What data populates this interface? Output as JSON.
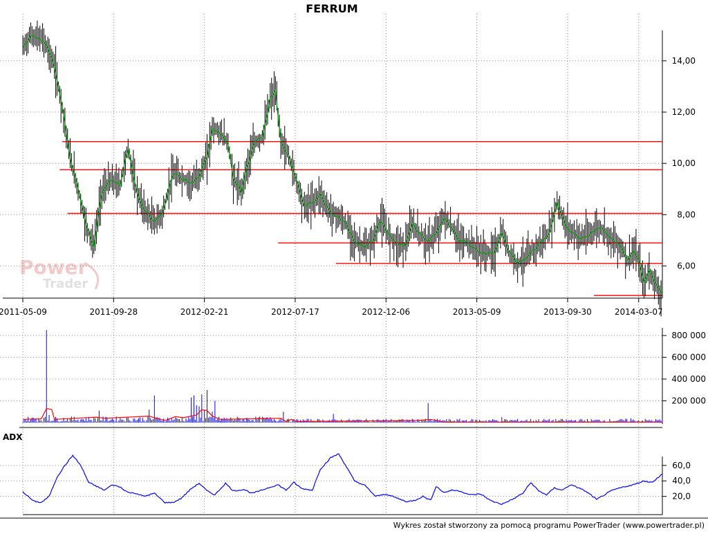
{
  "title": "FERRUM",
  "footer": "Wykres został stworzony za pomocą programu PowerTrader (www.powertrader.pl)",
  "watermark": {
    "line1": "Power",
    "line2": "Trader"
  },
  "adx_label": "ADX",
  "colors": {
    "price_bars": "#000000",
    "price_ma": "#00a000",
    "support_lines": "#ff0000",
    "volume_bars": "#0000ff",
    "volume_ma": "#ff0000",
    "adx_line": "#0000ff",
    "watermark": "#e8a0a0"
  },
  "chart_data": [
    {
      "name": "price",
      "type": "line",
      "x_ticks": [
        "2011-05-09",
        "2011-09-28",
        "2012-02-21",
        "2012-07-17",
        "2012-12-06",
        "2013-05-09",
        "2013-09-30",
        "2014-03-07"
      ],
      "ylim": [
        4.8,
        15.4
      ],
      "y_ticks": [
        "6,00",
        "8,00",
        "10,00",
        "12,00",
        "14,00"
      ],
      "y_tick_values": [
        6,
        8,
        10,
        12,
        14
      ],
      "close_series": [
        [
          0,
          14.5
        ],
        [
          3,
          15.0
        ],
        [
          8,
          14.8
        ],
        [
          12,
          13.8
        ],
        [
          15,
          12.2
        ],
        [
          18,
          10.2
        ],
        [
          21,
          9.0
        ],
        [
          24,
          7.6
        ],
        [
          27,
          6.8
        ],
        [
          30,
          8.9
        ],
        [
          33,
          9.3
        ],
        [
          37,
          9.2
        ],
        [
          40,
          10.6
        ],
        [
          43,
          9.0
        ],
        [
          46,
          8.2
        ],
        [
          50,
          7.7
        ],
        [
          53,
          8.0
        ],
        [
          57,
          9.6
        ],
        [
          61,
          9.4
        ],
        [
          64,
          9.2
        ],
        [
          67,
          9.5
        ],
        [
          70,
          10.2
        ],
        [
          72,
          11.4
        ],
        [
          75,
          11.2
        ],
        [
          78,
          10.8
        ],
        [
          80,
          9.4
        ],
        [
          83,
          8.9
        ],
        [
          85,
          9.8
        ],
        [
          88,
          10.8
        ],
        [
          91,
          11.0
        ],
        [
          94,
          12.5
        ],
        [
          96,
          12.8
        ],
        [
          98,
          10.9
        ],
        [
          101,
          10.3
        ],
        [
          104,
          9.3
        ],
        [
          107,
          8.3
        ],
        [
          110,
          8.5
        ],
        [
          113,
          8.8
        ],
        [
          116,
          8.2
        ],
        [
          120,
          7.9
        ],
        [
          123,
          7.6
        ],
        [
          126,
          7.0
        ],
        [
          130,
          6.7
        ],
        [
          133,
          7.0
        ],
        [
          136,
          7.8
        ],
        [
          139,
          7.2
        ],
        [
          142,
          6.9
        ],
        [
          145,
          6.8
        ],
        [
          148,
          7.6
        ],
        [
          151,
          7.2
        ],
        [
          154,
          6.9
        ],
        [
          157,
          7.3
        ],
        [
          160,
          7.9
        ],
        [
          163,
          7.5
        ],
        [
          166,
          7.0
        ],
        [
          169,
          6.9
        ],
        [
          173,
          6.6
        ],
        [
          176,
          6.5
        ],
        [
          179,
          6.5
        ],
        [
          182,
          7.3
        ],
        [
          185,
          6.5
        ],
        [
          188,
          6.1
        ],
        [
          191,
          6.3
        ],
        [
          194,
          6.6
        ],
        [
          197,
          6.9
        ],
        [
          200,
          7.3
        ],
        [
          203,
          8.5
        ],
        [
          206,
          7.6
        ],
        [
          209,
          7.3
        ],
        [
          212,
          7.1
        ],
        [
          215,
          7.2
        ],
        [
          218,
          7.5
        ],
        [
          221,
          7.4
        ],
        [
          224,
          7.0
        ],
        [
          227,
          6.8
        ],
        [
          230,
          6.2
        ],
        [
          232,
          6.6
        ],
        [
          234,
          6.2
        ],
        [
          236,
          5.3
        ],
        [
          238,
          5.8
        ],
        [
          240,
          5.4
        ],
        [
          242,
          5.0
        ],
        [
          243,
          4.9
        ]
      ],
      "horizontal_lines": [
        {
          "value": 10.85,
          "x_from": 15
        },
        {
          "value": 9.75,
          "x_from": 14
        },
        {
          "value": 8.05,
          "x_from": 17
        },
        {
          "value": 6.9,
          "x_from": 97
        },
        {
          "value": 6.1,
          "x_from": 119
        },
        {
          "value": 4.85,
          "x_from": 217
        }
      ]
    },
    {
      "name": "volume",
      "type": "bar",
      "ylim": [
        0,
        870000
      ],
      "y_ticks": [
        "200 000",
        "400 000",
        "600 000",
        "800 000"
      ],
      "y_tick_values": [
        200000,
        400000,
        600000,
        800000
      ],
      "spikes": [
        [
          9,
          850000
        ],
        [
          10,
          70000
        ],
        [
          29,
          110000
        ],
        [
          48,
          120000
        ],
        [
          50,
          250000
        ],
        [
          64,
          230000
        ],
        [
          65,
          250000
        ],
        [
          66,
          160000
        ],
        [
          67,
          150000
        ],
        [
          68,
          260000
        ],
        [
          69,
          120000
        ],
        [
          70,
          300000
        ],
        [
          72,
          100000
        ],
        [
          73,
          200000
        ],
        [
          99,
          100000
        ],
        [
          118,
          80000
        ],
        [
          154,
          180000
        ],
        [
          182,
          50000
        ],
        [
          231,
          40000
        ]
      ],
      "base_level": 25000,
      "ma_series": [
        [
          0,
          30000
        ],
        [
          7,
          35000
        ],
        [
          9,
          130000
        ],
        [
          11,
          120000
        ],
        [
          12,
          30000
        ],
        [
          28,
          50000
        ],
        [
          31,
          40000
        ],
        [
          48,
          60000
        ],
        [
          50,
          45000
        ],
        [
          54,
          20000
        ],
        [
          58,
          55000
        ],
        [
          61,
          45000
        ],
        [
          66,
          70000
        ],
        [
          68,
          120000
        ],
        [
          70,
          110000
        ],
        [
          72,
          60000
        ],
        [
          75,
          30000
        ],
        [
          98,
          40000
        ],
        [
          100,
          10000
        ],
        [
          102,
          30000
        ],
        [
          104,
          10000
        ],
        [
          150,
          20000
        ],
        [
          155,
          30000
        ],
        [
          160,
          5000
        ],
        [
          243,
          5000
        ]
      ]
    },
    {
      "name": "ADX",
      "type": "line",
      "ylim": [
        0,
        84
      ],
      "y_ticks": [
        "20,0",
        "40,0",
        "60,0"
      ],
      "y_tick_values": [
        20,
        40,
        60
      ],
      "series": [
        [
          0,
          26
        ],
        [
          4,
          14
        ],
        [
          7,
          12
        ],
        [
          10,
          20
        ],
        [
          13,
          45
        ],
        [
          16,
          60
        ],
        [
          19,
          73
        ],
        [
          22,
          60
        ],
        [
          25,
          38
        ],
        [
          28,
          33
        ],
        [
          31,
          28
        ],
        [
          34,
          35
        ],
        [
          37,
          32
        ],
        [
          40,
          25
        ],
        [
          43,
          24
        ],
        [
          46,
          20
        ],
        [
          50,
          24
        ],
        [
          54,
          12
        ],
        [
          57,
          12
        ],
        [
          60,
          17
        ],
        [
          64,
          30
        ],
        [
          67,
          37
        ],
        [
          70,
          27
        ],
        [
          73,
          22
        ],
        [
          77,
          37
        ],
        [
          80,
          27
        ],
        [
          84,
          29
        ],
        [
          87,
          24
        ],
        [
          90,
          27
        ],
        [
          94,
          32
        ],
        [
          97,
          35
        ],
        [
          100,
          28
        ],
        [
          103,
          38
        ],
        [
          106,
          30
        ],
        [
          110,
          28
        ],
        [
          113,
          55
        ],
        [
          117,
          70
        ],
        [
          120,
          75
        ],
        [
          123,
          58
        ],
        [
          126,
          40
        ],
        [
          130,
          34
        ],
        [
          134,
          20
        ],
        [
          138,
          23
        ],
        [
          142,
          18
        ],
        [
          146,
          13
        ],
        [
          149,
          15
        ],
        [
          152,
          20
        ],
        [
          155,
          15
        ],
        [
          157,
          33
        ],
        [
          160,
          25
        ],
        [
          163,
          28
        ],
        [
          166,
          27
        ],
        [
          170,
          22
        ],
        [
          174,
          23
        ],
        [
          178,
          14
        ],
        [
          182,
          10
        ],
        [
          186,
          16
        ],
        [
          190,
          24
        ],
        [
          193,
          38
        ],
        [
          196,
          27
        ],
        [
          199,
          22
        ],
        [
          202,
          31
        ],
        [
          205,
          28
        ],
        [
          208,
          35
        ],
        [
          212,
          30
        ],
        [
          215,
          24
        ],
        [
          218,
          16
        ],
        [
          221,
          22
        ],
        [
          224,
          28
        ],
        [
          228,
          32
        ],
        [
          232,
          35
        ],
        [
          236,
          40
        ],
        [
          239,
          38
        ],
        [
          243,
          49
        ]
      ]
    }
  ]
}
